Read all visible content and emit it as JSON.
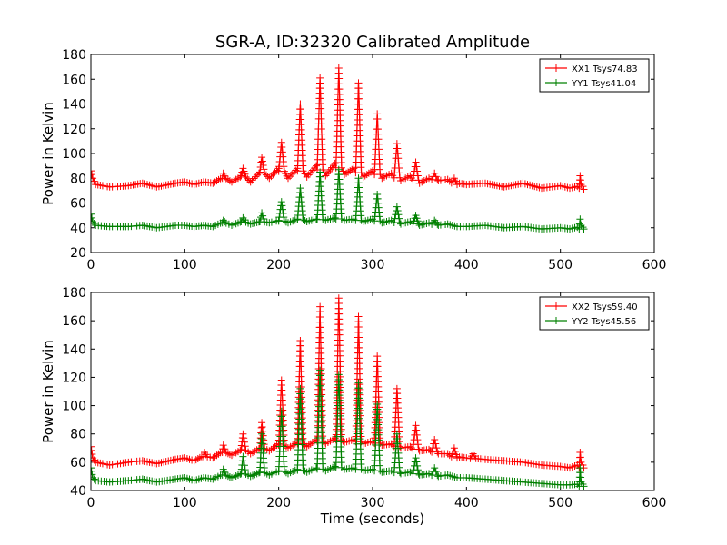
{
  "figure": {
    "title": "SGR-A, ID:32320 Calibrated Amplitude",
    "xlabel": "Time (seconds)"
  },
  "chart_data": [
    {
      "type": "line",
      "title": "SGR-A, ID:32320 Calibrated Amplitude",
      "xlabel": "",
      "ylabel": "Power in Kelvin",
      "xlim": [
        0,
        600
      ],
      "ylim": [
        20,
        180
      ],
      "xticks": [
        0,
        100,
        200,
        300,
        400,
        500,
        600
      ],
      "yticks": [
        20,
        40,
        60,
        80,
        100,
        120,
        140,
        160,
        180
      ],
      "grid": false,
      "legend": "top-right",
      "marker": "+",
      "series": [
        {
          "name": "XX1 Tsys74.83",
          "color": "#ff0000",
          "x": [
            0,
            2,
            5,
            20,
            40,
            55,
            70,
            90,
            100,
            110,
            120,
            130,
            140,
            150,
            160,
            170,
            180,
            190,
            200,
            210,
            220,
            230,
            240,
            250,
            260,
            270,
            280,
            290,
            300,
            310,
            320,
            330,
            340,
            350,
            360,
            370,
            380,
            390,
            400,
            420,
            440,
            460,
            480,
            500,
            510,
            520,
            522,
            525
          ],
          "y": [
            86,
            80,
            75,
            73,
            74,
            76,
            73,
            76,
            77,
            75,
            77,
            76,
            80,
            77,
            82,
            77,
            85,
            80,
            88,
            80,
            88,
            81,
            90,
            82,
            92,
            83,
            88,
            81,
            86,
            80,
            84,
            78,
            82,
            76,
            80,
            78,
            79,
            75,
            75,
            76,
            73,
            76,
            72,
            74,
            72,
            72,
            75,
            71
          ],
          "spikes": [
            [
              141,
              84
            ],
            [
              162,
              88
            ],
            [
              182,
              97
            ],
            [
              203,
              109
            ],
            [
              223,
              140
            ],
            [
              244,
              161
            ],
            [
              264,
              169
            ],
            [
              285,
              157
            ],
            [
              305,
              132
            ],
            [
              326,
              108
            ],
            [
              346,
              93
            ],
            [
              366,
              84
            ],
            [
              387,
              80
            ],
            [
              521,
              82
            ]
          ]
        },
        {
          "name": "YY1 Tsys41.04",
          "color": "#008000",
          "x": [
            0,
            2,
            5,
            20,
            40,
            55,
            70,
            90,
            100,
            110,
            120,
            130,
            140,
            150,
            160,
            170,
            180,
            190,
            200,
            210,
            220,
            230,
            240,
            250,
            260,
            270,
            280,
            290,
            300,
            310,
            320,
            330,
            340,
            350,
            360,
            370,
            380,
            390,
            400,
            420,
            440,
            460,
            480,
            500,
            510,
            520,
            522,
            525
          ],
          "y": [
            51,
            45,
            42,
            41,
            41,
            42,
            40,
            42,
            42,
            41,
            42,
            41,
            44,
            42,
            45,
            43,
            45,
            44,
            46,
            44,
            47,
            45,
            47,
            46,
            48,
            46,
            47,
            45,
            47,
            44,
            46,
            43,
            45,
            42,
            44,
            42,
            43,
            41,
            41,
            42,
            40,
            41,
            39,
            40,
            39,
            39,
            42,
            39
          ],
          "spikes": [
            [
              141,
              46
            ],
            [
              162,
              48
            ],
            [
              182,
              52
            ],
            [
              203,
              61
            ],
            [
              223,
              72
            ],
            [
              244,
              85
            ],
            [
              264,
              87
            ],
            [
              285,
              80
            ],
            [
              305,
              67
            ],
            [
              326,
              57
            ],
            [
              346,
              50
            ],
            [
              366,
              46
            ],
            [
              521,
              47
            ]
          ]
        }
      ]
    },
    {
      "type": "line",
      "title": "",
      "xlabel": "Time (seconds)",
      "ylabel": "Power in Kelvin",
      "xlim": [
        0,
        600
      ],
      "ylim": [
        40,
        180
      ],
      "xticks": [
        0,
        100,
        200,
        300,
        400,
        500,
        600
      ],
      "yticks": [
        40,
        60,
        80,
        100,
        120,
        140,
        160,
        180
      ],
      "grid": false,
      "legend": "top-right",
      "marker": "+",
      "series": [
        {
          "name": "XX2 Tsys59.40",
          "color": "#ff0000",
          "x": [
            0,
            2,
            5,
            20,
            40,
            55,
            70,
            90,
            100,
            110,
            120,
            130,
            140,
            150,
            160,
            170,
            180,
            190,
            200,
            210,
            220,
            230,
            240,
            250,
            260,
            270,
            280,
            290,
            300,
            310,
            320,
            330,
            340,
            350,
            360,
            370,
            380,
            390,
            400,
            420,
            440,
            460,
            480,
            500,
            510,
            520,
            522,
            525
          ],
          "y": [
            71,
            63,
            60,
            58,
            60,
            61,
            59,
            62,
            63,
            61,
            64,
            63,
            67,
            65,
            69,
            66,
            70,
            68,
            73,
            70,
            74,
            71,
            76,
            73,
            77,
            74,
            76,
            73,
            75,
            72,
            73,
            70,
            71,
            68,
            69,
            66,
            66,
            63,
            63,
            62,
            61,
            60,
            58,
            57,
            56,
            56,
            60,
            56
          ],
          "spikes": [
            [
              121,
              67
            ],
            [
              141,
              72
            ],
            [
              162,
              80
            ],
            [
              182,
              88
            ],
            [
              203,
              118
            ],
            [
              223,
              146
            ],
            [
              244,
              170
            ],
            [
              264,
              176
            ],
            [
              285,
              163
            ],
            [
              305,
              135
            ],
            [
              326,
              112
            ],
            [
              346,
              86
            ],
            [
              366,
              76
            ],
            [
              387,
              70
            ],
            [
              407,
              66
            ],
            [
              521,
              67
            ]
          ]
        },
        {
          "name": "YY2 Tsys45.56",
          "color": "#008000",
          "x": [
            0,
            2,
            5,
            20,
            40,
            55,
            70,
            90,
            100,
            110,
            120,
            130,
            140,
            150,
            160,
            170,
            180,
            190,
            200,
            210,
            220,
            230,
            240,
            250,
            260,
            270,
            280,
            290,
            300,
            310,
            320,
            330,
            340,
            350,
            360,
            370,
            380,
            390,
            400,
            420,
            440,
            460,
            480,
            500,
            510,
            520,
            522,
            525
          ],
          "y": [
            56,
            49,
            47,
            46,
            47,
            48,
            46,
            48,
            49,
            47,
            49,
            48,
            51,
            49,
            52,
            50,
            53,
            51,
            54,
            52,
            55,
            53,
            56,
            54,
            57,
            55,
            56,
            54,
            55,
            53,
            54,
            52,
            53,
            51,
            52,
            50,
            51,
            49,
            49,
            48,
            47,
            46,
            45,
            44,
            44,
            43,
            46,
            43
          ],
          "spikes": [
            [
              141,
              55
            ],
            [
              162,
              64
            ],
            [
              182,
              80
            ],
            [
              203,
              96
            ],
            [
              223,
              112
            ],
            [
              244,
              125
            ],
            [
              264,
              122
            ],
            [
              285,
              116
            ],
            [
              305,
              101
            ],
            [
              326,
              80
            ],
            [
              346,
              63
            ],
            [
              366,
              56
            ],
            [
              521,
              56
            ]
          ]
        }
      ]
    }
  ]
}
